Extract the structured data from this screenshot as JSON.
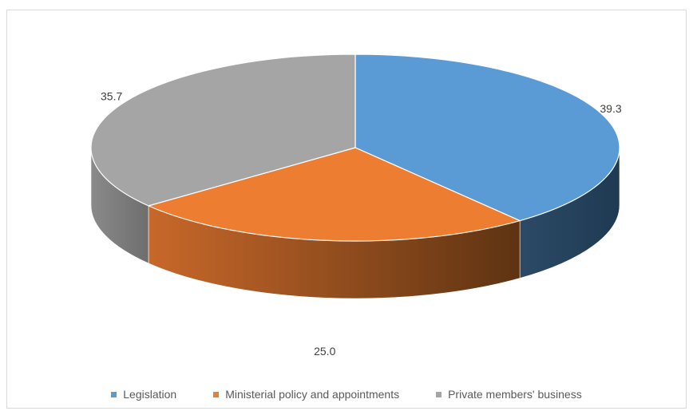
{
  "chart_data": {
    "type": "pie",
    "style": "3d",
    "categories": [
      "Legislation",
      "Ministerial policy and appointments",
      "Private members' business"
    ],
    "values": [
      39.3,
      25.0,
      35.7
    ],
    "data_labels": [
      "39.3",
      "25.0",
      "35.7"
    ],
    "colors": [
      "#5b9bd5",
      "#ed7d31",
      "#a5a5a5"
    ],
    "legend_position": "bottom",
    "title": ""
  }
}
